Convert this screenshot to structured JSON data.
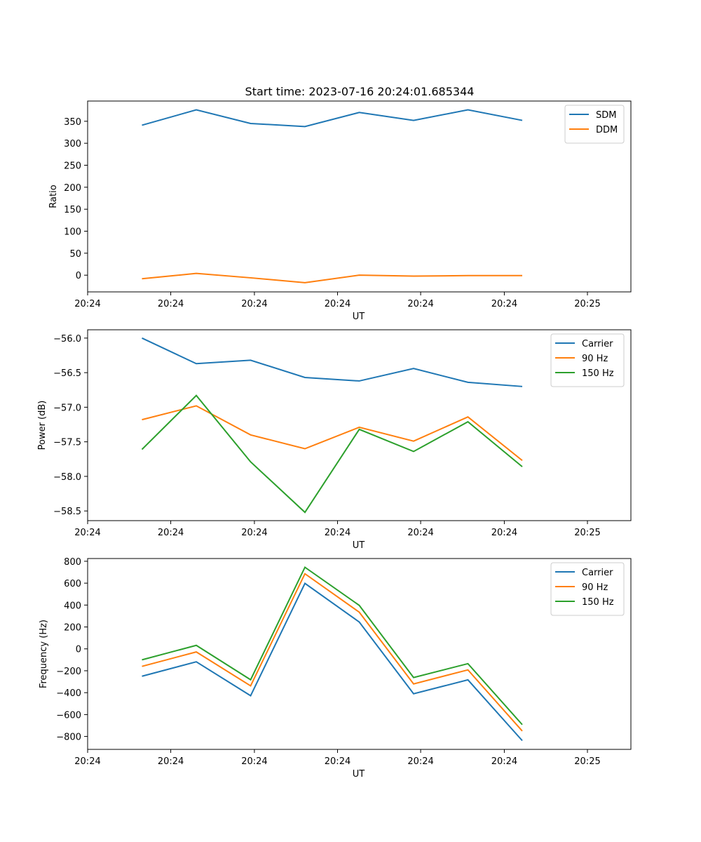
{
  "title": "Start time: 2023-07-16 20:24:01.685344",
  "chart_data": [
    {
      "type": "line",
      "title": "Start time: 2023-07-16 20:24:01.685344",
      "xlabel": "UT",
      "ylabel": "Ratio",
      "x_index": [
        1,
        2,
        3,
        4,
        5,
        6,
        7,
        8
      ],
      "xlim": [
        0,
        10
      ],
      "x_ticks": [
        0,
        1.53,
        3.07,
        4.6,
        6.13,
        7.67,
        9.2
      ],
      "x_tick_labels": [
        "20:24",
        "20:24",
        "20:24",
        "20:24",
        "20:24",
        "20:24",
        "20:25"
      ],
      "ylim": [
        -38,
        396
      ],
      "y_ticks": [
        0,
        50,
        100,
        150,
        200,
        250,
        300,
        350
      ],
      "y_tick_labels": [
        "0",
        "50",
        "100",
        "150",
        "200",
        "250",
        "300",
        "350"
      ],
      "legend_position": "upper-right",
      "series": [
        {
          "name": "SDM",
          "color": "#1f77b4",
          "values": [
            341,
            376,
            345,
            338,
            370,
            352,
            376,
            352
          ]
        },
        {
          "name": "DDM",
          "color": "#ff7f0e",
          "values": [
            -8,
            4,
            -6,
            -17,
            0,
            -2,
            -1,
            -1
          ]
        }
      ]
    },
    {
      "type": "line",
      "xlabel": "UT",
      "ylabel": "Power (dB)",
      "x_index": [
        1,
        2,
        3,
        4,
        5,
        6,
        7,
        8
      ],
      "xlim": [
        0,
        10
      ],
      "x_ticks": [
        0,
        1.53,
        3.07,
        4.6,
        6.13,
        7.67,
        9.2
      ],
      "x_tick_labels": [
        "20:24",
        "20:24",
        "20:24",
        "20:24",
        "20:24",
        "20:24",
        "20:25"
      ],
      "ylim": [
        -58.64,
        -55.88
      ],
      "y_ticks": [
        -58.5,
        -58.0,
        -57.5,
        -57.0,
        -56.5,
        -56.0
      ],
      "y_tick_labels": [
        "−58.5",
        "−58.0",
        "−57.5",
        "−57.0",
        "−56.5",
        "−56.0"
      ],
      "legend_position": "upper-right",
      "series": [
        {
          "name": "Carrier",
          "color": "#1f77b4",
          "values": [
            -56.0,
            -56.37,
            -56.32,
            -56.57,
            -56.62,
            -56.44,
            -56.64,
            -56.7
          ]
        },
        {
          "name": "90 Hz",
          "color": "#ff7f0e",
          "values": [
            -57.18,
            -56.98,
            -57.4,
            -57.6,
            -57.29,
            -57.49,
            -57.14,
            -57.77
          ]
        },
        {
          "name": "150 Hz",
          "color": "#2ca02c",
          "values": [
            -57.61,
            -56.83,
            -57.79,
            -58.52,
            -57.32,
            -57.64,
            -57.21,
            -57.86
          ]
        }
      ]
    },
    {
      "type": "line",
      "xlabel": "UT",
      "ylabel": "Frequency (Hz)",
      "x_index": [
        1,
        2,
        3,
        4,
        5,
        6,
        7,
        8
      ],
      "xlim": [
        0,
        10
      ],
      "x_ticks": [
        0,
        1.53,
        3.07,
        4.6,
        6.13,
        7.67,
        9.2
      ],
      "x_tick_labels": [
        "20:24",
        "20:24",
        "20:24",
        "20:24",
        "20:24",
        "20:24",
        "20:25"
      ],
      "ylim": [
        -918,
        825
      ],
      "y_ticks": [
        -800,
        -600,
        -400,
        -200,
        0,
        200,
        400,
        600,
        800
      ],
      "y_tick_labels": [
        "−800",
        "−600",
        "−400",
        "−200",
        "0",
        "200",
        "400",
        "600",
        "800"
      ],
      "legend_position": "upper-right",
      "series": [
        {
          "name": "Carrier",
          "color": "#1f77b4",
          "values": [
            -250,
            -118,
            -428,
            598,
            245,
            -410,
            -283,
            -838
          ]
        },
        {
          "name": "90 Hz",
          "color": "#ff7f0e",
          "values": [
            -160,
            -28,
            -338,
            686,
            335,
            -320,
            -192,
            -750
          ]
        },
        {
          "name": "150 Hz",
          "color": "#2ca02c",
          "values": [
            -100,
            32,
            -282,
            745,
            397,
            -262,
            -135,
            -692
          ]
        }
      ]
    }
  ]
}
